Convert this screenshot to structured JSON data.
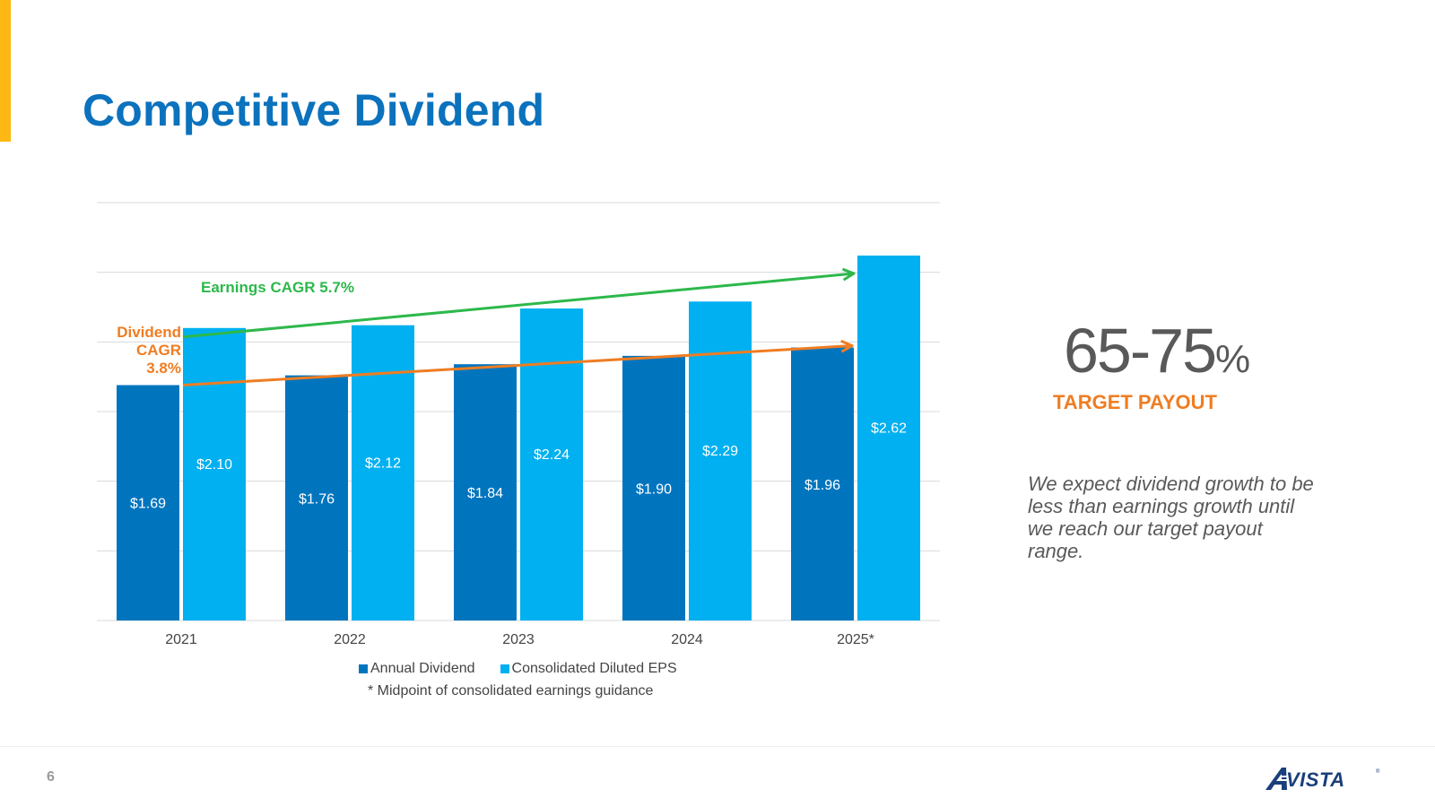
{
  "page": {
    "title": "Competitive Dividend",
    "page_number": "6",
    "logo_text": "VISTA",
    "logo_reg": "®"
  },
  "colors": {
    "title": "#0b72bd",
    "accent_bar": "#fdb813",
    "dividend": "#0075be",
    "eps": "#00b0f0",
    "earnings_arrow": "#2db84b",
    "dividend_arrow": "#ef7d22",
    "grid": "#d9d9d9",
    "logo": "#1a3f7a"
  },
  "payout": {
    "range": "65-75",
    "percent_sign": "%",
    "label": "TARGET PAYOUT",
    "statement": "We expect dividend growth to be less than earnings growth until we reach our target payout range."
  },
  "chart_data": {
    "type": "bar",
    "categories": [
      "2021",
      "2022",
      "2023",
      "2024",
      "2025*"
    ],
    "series": [
      {
        "name": "Annual Dividend",
        "values": [
          1.69,
          1.76,
          1.84,
          1.9,
          1.96
        ],
        "labels": [
          "$1.69",
          "$1.76",
          "$1.84",
          "$1.90",
          "$1.96"
        ]
      },
      {
        "name": "Consolidated Diluted EPS",
        "values": [
          2.1,
          2.12,
          2.24,
          2.29,
          2.62
        ],
        "labels": [
          "$2.10",
          "$2.12",
          "$2.24",
          "$2.29",
          "$2.62"
        ]
      }
    ],
    "ylim": [
      0,
      3.0
    ],
    "grid_step": 0.5,
    "grid": true,
    "legend_position": "bottom",
    "annotations": {
      "earnings_cagr": "Earnings CAGR 5.7%",
      "dividend_cagr": [
        "Dividend",
        "CAGR",
        "3.8%"
      ]
    },
    "footnote": "* Midpoint of consolidated earnings guidance"
  }
}
